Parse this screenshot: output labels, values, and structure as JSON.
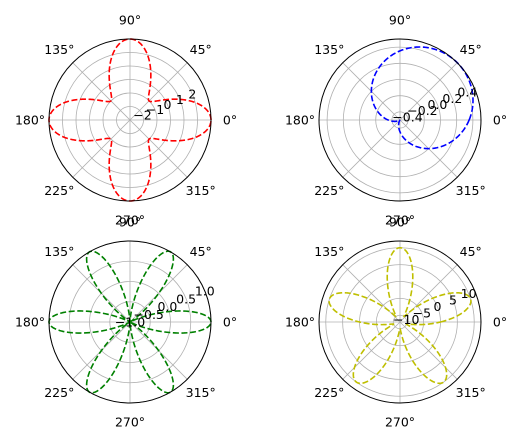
{
  "chart_data": [
    {
      "type": "line",
      "projection": "polar",
      "title": "",
      "curve": "r = 1 + 2·cos(4θ) (dashed)",
      "color": "#ff0000",
      "theta_ticks": [
        "0°",
        "45°",
        "90°",
        "135°",
        "180°",
        "225°",
        "270°",
        "315°"
      ],
      "r_ticks": [
        "−2",
        "−1",
        "0",
        "1",
        "2"
      ],
      "r_tick_values": [
        -2,
        -1,
        0,
        1,
        2
      ],
      "rlim": [
        -3,
        3
      ],
      "rlabel_angle_deg": 22.5,
      "grid": true
    },
    {
      "type": "line",
      "projection": "polar",
      "title": "",
      "curve": "r = 0.5·sin(θ + 45°) (dashed)",
      "color": "#0000ff",
      "theta_ticks": [
        "0°",
        "45°",
        "90°",
        "135°",
        "180°",
        "225°",
        "270°",
        "315°"
      ],
      "r_ticks": [
        "−0.4",
        "−0.2",
        "0.0",
        "0.2",
        "0.4"
      ],
      "r_tick_values": [
        -0.4,
        -0.2,
        0.0,
        0.2,
        0.4
      ],
      "rlim": [
        -0.5,
        0.5
      ],
      "rlabel_angle_deg": 22.5,
      "grid": true
    },
    {
      "type": "line",
      "projection": "polar",
      "title": "",
      "curve": "r = cos(6θ) (dashed)",
      "color": "#008000",
      "theta_ticks": [
        "0°",
        "45°",
        "90°",
        "135°",
        "180°",
        "225°",
        "270°",
        "315°"
      ],
      "r_ticks": [
        "−1.0",
        "−0.5",
        "0.0",
        "0.5",
        "1.0"
      ],
      "r_tick_values": [
        -1.0,
        -0.5,
        0.0,
        0.5,
        1.0
      ],
      "rlim": [
        -1.0,
        1.0
      ],
      "rlabel_angle_deg": 22.5,
      "grid": true
    },
    {
      "type": "line",
      "projection": "polar",
      "title": "",
      "curve": "r = 10·sin(5θ) (dashed)",
      "color": "#bfbf00",
      "theta_ticks": [
        "0°",
        "45°",
        "90°",
        "135°",
        "180°",
        "225°",
        "270°",
        "315°"
      ],
      "r_ticks": [
        "−10",
        "−5",
        "0",
        "5",
        "10"
      ],
      "r_tick_values": [
        -10,
        -5,
        0,
        5,
        10
      ],
      "rlim": [
        -12,
        12
      ],
      "rlabel_angle_deg": 22.5,
      "grid": true
    }
  ]
}
